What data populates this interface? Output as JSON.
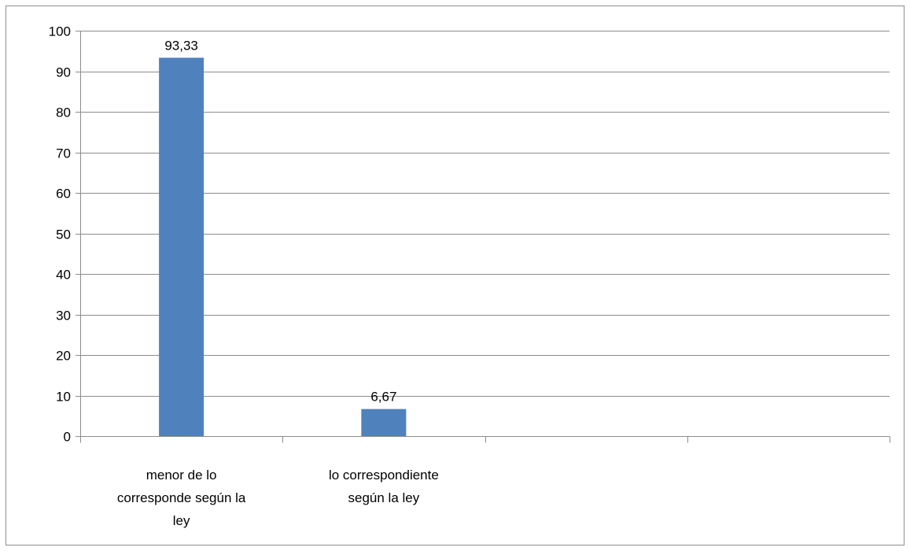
{
  "chart_data": {
    "type": "bar",
    "title": "",
    "xlabel": "",
    "ylabel": "",
    "categories": [
      [
        "menor de lo",
        "corresponde según la",
        "ley"
      ],
      [
        "lo correspondiente",
        "según la ley"
      ],
      [],
      []
    ],
    "values": [
      93.33,
      6.67,
      null,
      null
    ],
    "data_labels": [
      "93,33",
      "6,67",
      "",
      ""
    ],
    "ylim": [
      0,
      100
    ],
    "yticks": [
      0,
      10,
      20,
      30,
      40,
      50,
      60,
      70,
      80,
      90,
      100
    ],
    "grid": true,
    "legend": "none",
    "bar_color": "#4f81bd",
    "grid_color": "#8c8c8c"
  }
}
